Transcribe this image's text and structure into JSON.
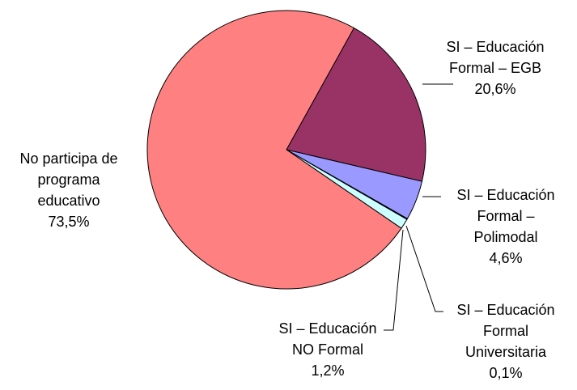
{
  "chart_data": {
    "type": "pie",
    "categories": [
      "SI – Educación Formal – EGB",
      "SI – Educación Formal – Polimodal",
      "SI – Educación Formal Universitaria",
      "SI – Educación NO Formal",
      "No participa de programa educativo"
    ],
    "values": [
      20.6,
      4.6,
      0.1,
      1.2,
      73.5
    ],
    "value_labels": [
      "20,6%",
      "4,6%",
      "0,1%",
      "1,2%",
      "73,5%"
    ],
    "colors": [
      "#993366",
      "#9999ff",
      "#ffffcc",
      "#ccffff",
      "#ff8080"
    ]
  }
}
